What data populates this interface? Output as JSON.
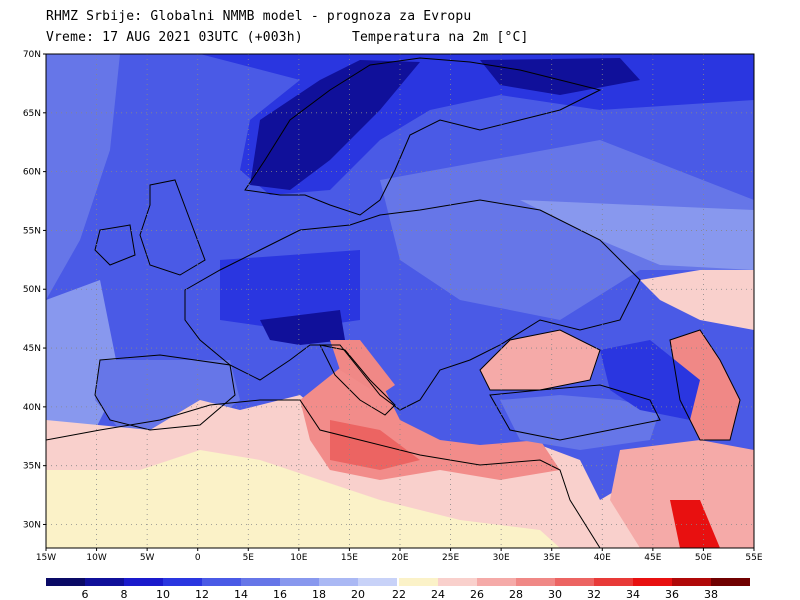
{
  "header": {
    "line1": "RHMZ Srbije: Globalni NMMB model - prognoza za Evropu",
    "line2": "Vreme: 17 AUG 2021 03UTC (+003h)",
    "line3": "Temperatura na 2m [°C]"
  },
  "axes": {
    "lat_labels": [
      "70N",
      "65N",
      "60N",
      "55N",
      "50N",
      "45N",
      "40N",
      "35N",
      "30N"
    ],
    "lat_values": [
      70,
      65,
      60,
      55,
      50,
      45,
      40,
      35,
      30
    ],
    "lon_labels": [
      "15W",
      "10W",
      "5W",
      "0",
      "5E",
      "10E",
      "15E",
      "20E",
      "25E",
      "30E",
      "35E",
      "40E",
      "45E",
      "50E",
      "55E"
    ],
    "lon_values": [
      -15,
      -10,
      -5,
      0,
      5,
      10,
      15,
      20,
      25,
      30,
      35,
      40,
      45,
      50,
      55
    ],
    "lat_range": [
      28,
      70
    ],
    "lon_range": [
      -15,
      55
    ]
  },
  "colorbar": {
    "labels": [
      "6",
      "8",
      "10",
      "12",
      "14",
      "16",
      "18",
      "20",
      "22",
      "24",
      "26",
      "28",
      "30",
      "32",
      "34",
      "36",
      "38"
    ],
    "cold_colors": [
      "#0a0a66",
      "#10109a",
      "#1a1acc",
      "#2a36e0",
      "#4a5ae6",
      "#6676e8",
      "#8898ee",
      "#aab8f4",
      "#c8d2f8"
    ],
    "warm_colors": [
      "#fbf2c8",
      "#f9d0cc",
      "#f5aaa8",
      "#f08886",
      "#ec6462",
      "#e83a38",
      "#e81010",
      "#b00808",
      "#700000"
    ]
  },
  "legend_colors": {
    "land_outline": "#000000",
    "grid": "#888888",
    "cold_sea": "#3a4ae0",
    "warm_sea": "#f28c8a"
  }
}
